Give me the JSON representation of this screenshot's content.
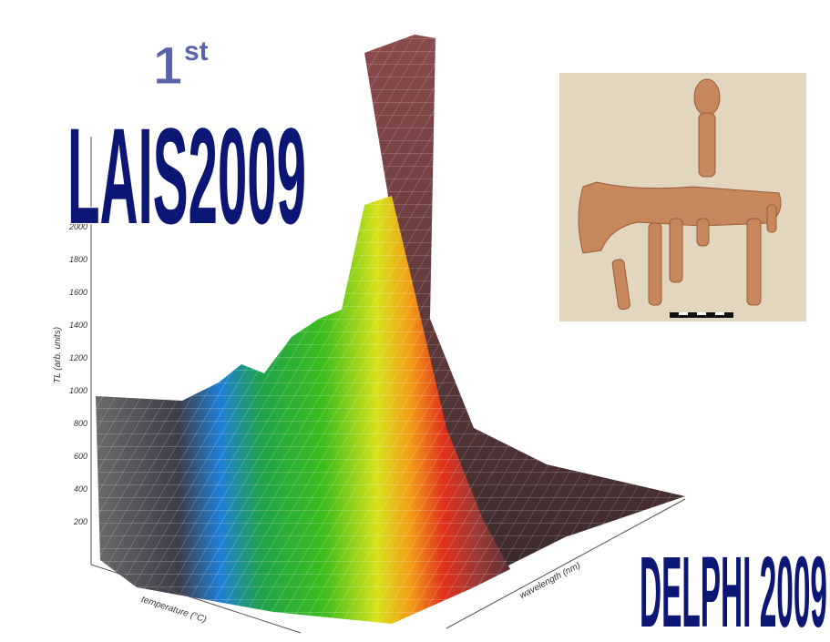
{
  "header": {
    "ordinal": {
      "number": "1",
      "suffix": "st"
    },
    "title": "LAIS2009"
  },
  "footer": {
    "title": "DELPHI 2009"
  },
  "surface_plot": {
    "y_axis_title": "TL (arb. units)",
    "y_tick_labels": [
      "200",
      "400",
      "600",
      "800",
      "1000",
      "1200",
      "1400",
      "1600",
      "1800",
      "2000"
    ],
    "x_axis_title": "temperature (°C)",
    "z_axis_title": "wavelength (nm)"
  }
}
